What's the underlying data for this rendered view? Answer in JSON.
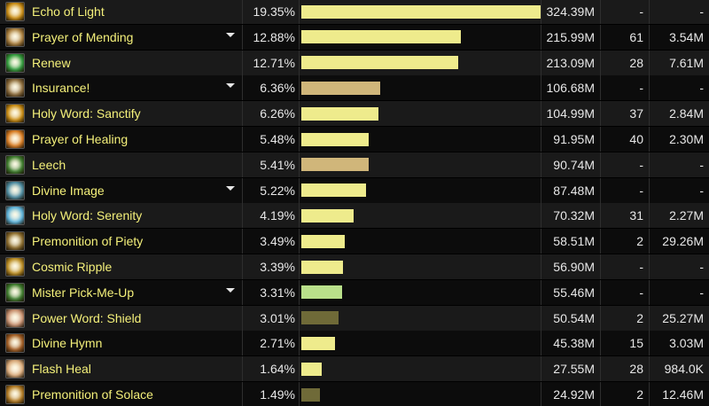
{
  "rows": [
    {
      "name": "Echo of Light",
      "pct": "19.35%",
      "fraction": 1.0,
      "bar_color": "#eeeb8c",
      "amount": "324.39M",
      "casts": "-",
      "avg": "-",
      "caret": false,
      "icon": "echo-of-light-icon",
      "icon_color": "#c88a10"
    },
    {
      "name": "Prayer of Mending",
      "pct": "12.88%",
      "fraction": 0.666,
      "bar_color": "#eeeb8c",
      "amount": "215.99M",
      "casts": "61",
      "avg": "3.54M",
      "caret": true,
      "icon": "prayer-of-mending-icon",
      "icon_color": "#a87d3c"
    },
    {
      "name": "Renew",
      "pct": "12.71%",
      "fraction": 0.657,
      "bar_color": "#eeeb8c",
      "amount": "213.09M",
      "casts": "28",
      "avg": "7.61M",
      "caret": false,
      "icon": "renew-icon",
      "icon_color": "#2e9a3a"
    },
    {
      "name": "Insurance!",
      "pct": "6.36%",
      "fraction": 0.329,
      "bar_color": "#d0b67a",
      "amount": "106.68M",
      "casts": "-",
      "avg": "-",
      "caret": true,
      "icon": "insurance-icon",
      "icon_color": "#8a6a3a"
    },
    {
      "name": "Holy Word: Sanctify",
      "pct": "6.26%",
      "fraction": 0.324,
      "bar_color": "#eeeb8c",
      "amount": "104.99M",
      "casts": "37",
      "avg": "2.84M",
      "caret": false,
      "icon": "holy-word-sanctify-icon",
      "icon_color": "#c88a10"
    },
    {
      "name": "Prayer of Healing",
      "pct": "5.48%",
      "fraction": 0.283,
      "bar_color": "#eeeb8c",
      "amount": "91.95M",
      "casts": "40",
      "avg": "2.30M",
      "caret": false,
      "icon": "prayer-of-healing-icon",
      "icon_color": "#d67a20"
    },
    {
      "name": "Leech",
      "pct": "5.41%",
      "fraction": 0.28,
      "bar_color": "#d0b67a",
      "amount": "90.74M",
      "casts": "-",
      "avg": "-",
      "caret": false,
      "icon": "leech-icon",
      "icon_color": "#3a7a2a"
    },
    {
      "name": "Divine Image",
      "pct": "5.22%",
      "fraction": 0.27,
      "bar_color": "#eeeb8c",
      "amount": "87.48M",
      "casts": "-",
      "avg": "-",
      "caret": true,
      "icon": "divine-image-icon",
      "icon_color": "#4a8aa0"
    },
    {
      "name": "Holy Word: Serenity",
      "pct": "4.19%",
      "fraction": 0.217,
      "bar_color": "#eeeb8c",
      "amount": "70.32M",
      "casts": "31",
      "avg": "2.27M",
      "caret": false,
      "icon": "holy-word-serenity-icon",
      "icon_color": "#5ab0d8"
    },
    {
      "name": "Premonition of Piety",
      "pct": "3.49%",
      "fraction": 0.18,
      "bar_color": "#eeeb8c",
      "amount": "58.51M",
      "casts": "2",
      "avg": "29.26M",
      "caret": false,
      "icon": "premonition-of-piety-icon",
      "icon_color": "#8a6a2a"
    },
    {
      "name": "Cosmic Ripple",
      "pct": "3.39%",
      "fraction": 0.175,
      "bar_color": "#eeeb8c",
      "amount": "56.90M",
      "casts": "-",
      "avg": "-",
      "caret": false,
      "icon": "cosmic-ripple-icon",
      "icon_color": "#b88a20"
    },
    {
      "name": "Mister Pick-Me-Up",
      "pct": "3.31%",
      "fraction": 0.171,
      "bar_color": "#b9e08a",
      "amount": "55.46M",
      "casts": "-",
      "avg": "-",
      "caret": true,
      "icon": "mister-pick-me-up-icon",
      "icon_color": "#3a7a2a"
    },
    {
      "name": "Power Word: Shield",
      "pct": "3.01%",
      "fraction": 0.156,
      "bar_color": "#6f6a38",
      "amount": "50.54M",
      "casts": "2",
      "avg": "25.27M",
      "caret": false,
      "icon": "power-word-shield-icon",
      "icon_color": "#c89070"
    },
    {
      "name": "Divine Hymn",
      "pct": "2.71%",
      "fraction": 0.14,
      "bar_color": "#eeeb8c",
      "amount": "45.38M",
      "casts": "15",
      "avg": "3.03M",
      "caret": false,
      "icon": "divine-hymn-icon",
      "icon_color": "#a05a20"
    },
    {
      "name": "Flash Heal",
      "pct": "1.64%",
      "fraction": 0.085,
      "bar_color": "#eeeb8c",
      "amount": "27.55M",
      "casts": "28",
      "avg": "984.0K",
      "caret": false,
      "icon": "flash-heal-icon",
      "icon_color": "#d8a878"
    },
    {
      "name": "Premonition of Solace",
      "pct": "1.49%",
      "fraction": 0.077,
      "bar_color": "#6f6a38",
      "amount": "24.92M",
      "casts": "2",
      "avg": "12.46M",
      "caret": false,
      "icon": "premonition-of-solace-icon",
      "icon_color": "#b07820"
    }
  ]
}
